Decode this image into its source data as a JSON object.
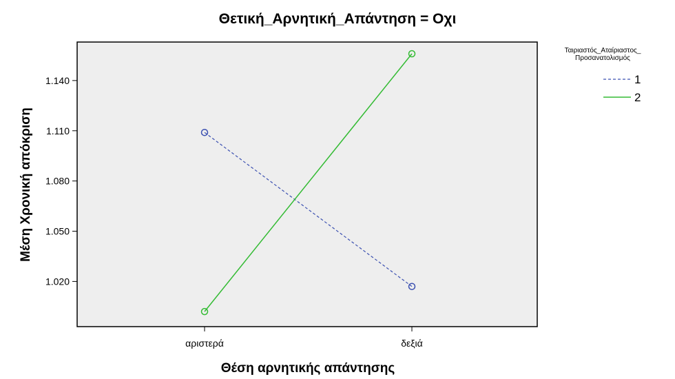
{
  "chart_data": {
    "type": "line",
    "title": "Θετική_Αρνητική_Απάντηση = Οχι",
    "xlabel": "Θέση αρνητικής απάντησης",
    "ylabel": "Μέση Χρονική απόκριση",
    "categories": [
      "αριστερά",
      "δεξιά"
    ],
    "y_ticks": [
      "1.020",
      "1.050",
      "1.080",
      "1.110",
      "1.140"
    ],
    "y_tick_values": [
      1.02,
      1.05,
      1.08,
      1.11,
      1.14
    ],
    "ylim": [
      0.993,
      1.163
    ],
    "grid": false,
    "legend": {
      "title_lines": [
        "Ταιριαστός_Αταίριαστος_",
        "Προσανατολισμός"
      ],
      "placement": "right"
    },
    "series": [
      {
        "name": "1",
        "values": [
          1.109,
          1.017
        ],
        "color": "#3a4fb0",
        "style": "dashed",
        "marker": "circle"
      },
      {
        "name": "2",
        "values": [
          1.002,
          1.156
        ],
        "color": "#33bb33",
        "style": "solid",
        "marker": "circle"
      }
    ],
    "plot_background": "#eeeeee"
  }
}
